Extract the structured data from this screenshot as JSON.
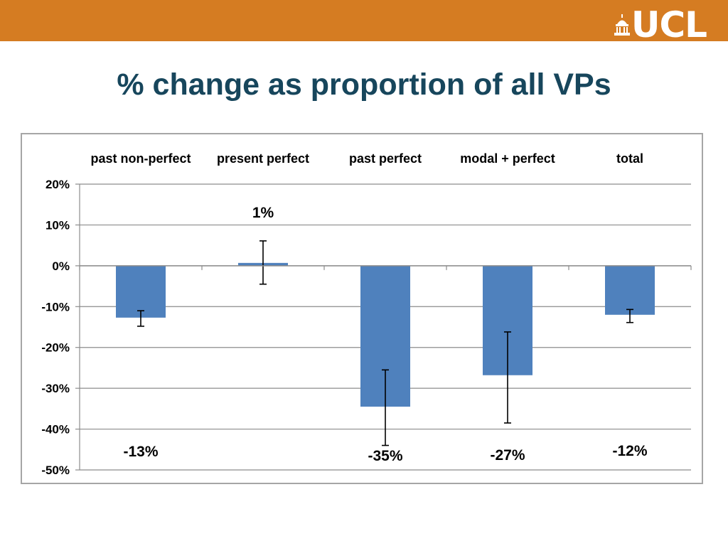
{
  "header": {
    "bar_color": "#D57C22",
    "logo_text": "UCL",
    "logo_icon": "portico-dome-icon"
  },
  "slide": {
    "title": "% change as proportion of all VPs",
    "title_color": "#17465C"
  },
  "chart_data": {
    "type": "bar",
    "title": "",
    "xlabel": "",
    "ylabel": "",
    "categories": [
      "past non-perfect",
      "present perfect",
      "past perfect",
      "modal + perfect",
      "total"
    ],
    "values": [
      -12.7,
      0.7,
      -34.5,
      -26.8,
      -12.0
    ],
    "error_low": [
      -14.8,
      -4.5,
      -44.0,
      -38.5,
      -13.9
    ],
    "error_high": [
      -11.0,
      6.1,
      -25.5,
      -16.2,
      -10.7
    ],
    "data_labels": [
      "-13%",
      "1%",
      "-35%",
      "-27%",
      "-12%"
    ],
    "label_values": [
      -45.5,
      13.0,
      -46.5,
      -46.3,
      -45.3
    ],
    "y_ticks": [
      20,
      10,
      0,
      -10,
      -20,
      -30,
      -40,
      -50
    ],
    "y_tick_labels": [
      "20%",
      "10%",
      "0%",
      "-10%",
      "-20%",
      "-30%",
      "-40%",
      "-50%"
    ],
    "ylim": [
      -50,
      20
    ],
    "grid": true,
    "category_axis_position": "top",
    "legend": "none",
    "bar_color": "#4F81BD"
  }
}
